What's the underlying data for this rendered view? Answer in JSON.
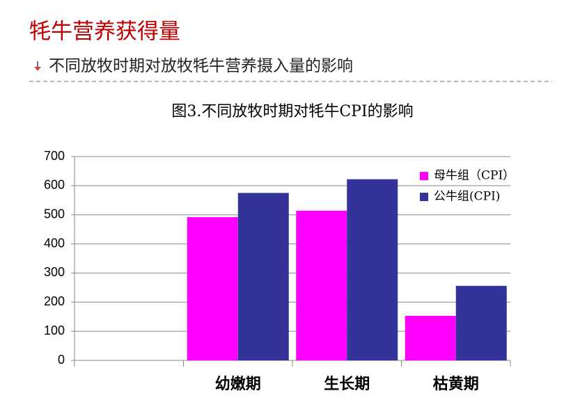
{
  "header": {
    "title": "牦牛营养获得量",
    "subtitle": "不同放牧时期对放牧牦牛营养摄入量的影响"
  },
  "chart_data": {
    "type": "bar",
    "title": "图3.不同放牧时期对牦牛CPI的影响",
    "categories": [
      null,
      "幼嫩期",
      "生长期",
      "枯黄期"
    ],
    "series": [
      {
        "name": "母牛组（CPI）",
        "color": "#ff00ff",
        "values": [
          null,
          492,
          514,
          153
        ]
      },
      {
        "name": "公牛组(CPI)",
        "color": "#333399",
        "values": [
          null,
          575,
          622,
          256
        ]
      }
    ],
    "ylim": [
      0,
      700
    ],
    "yticks": [
      0,
      100,
      200,
      300,
      400,
      500,
      600,
      700
    ],
    "grid": true,
    "legend": "top-right"
  }
}
